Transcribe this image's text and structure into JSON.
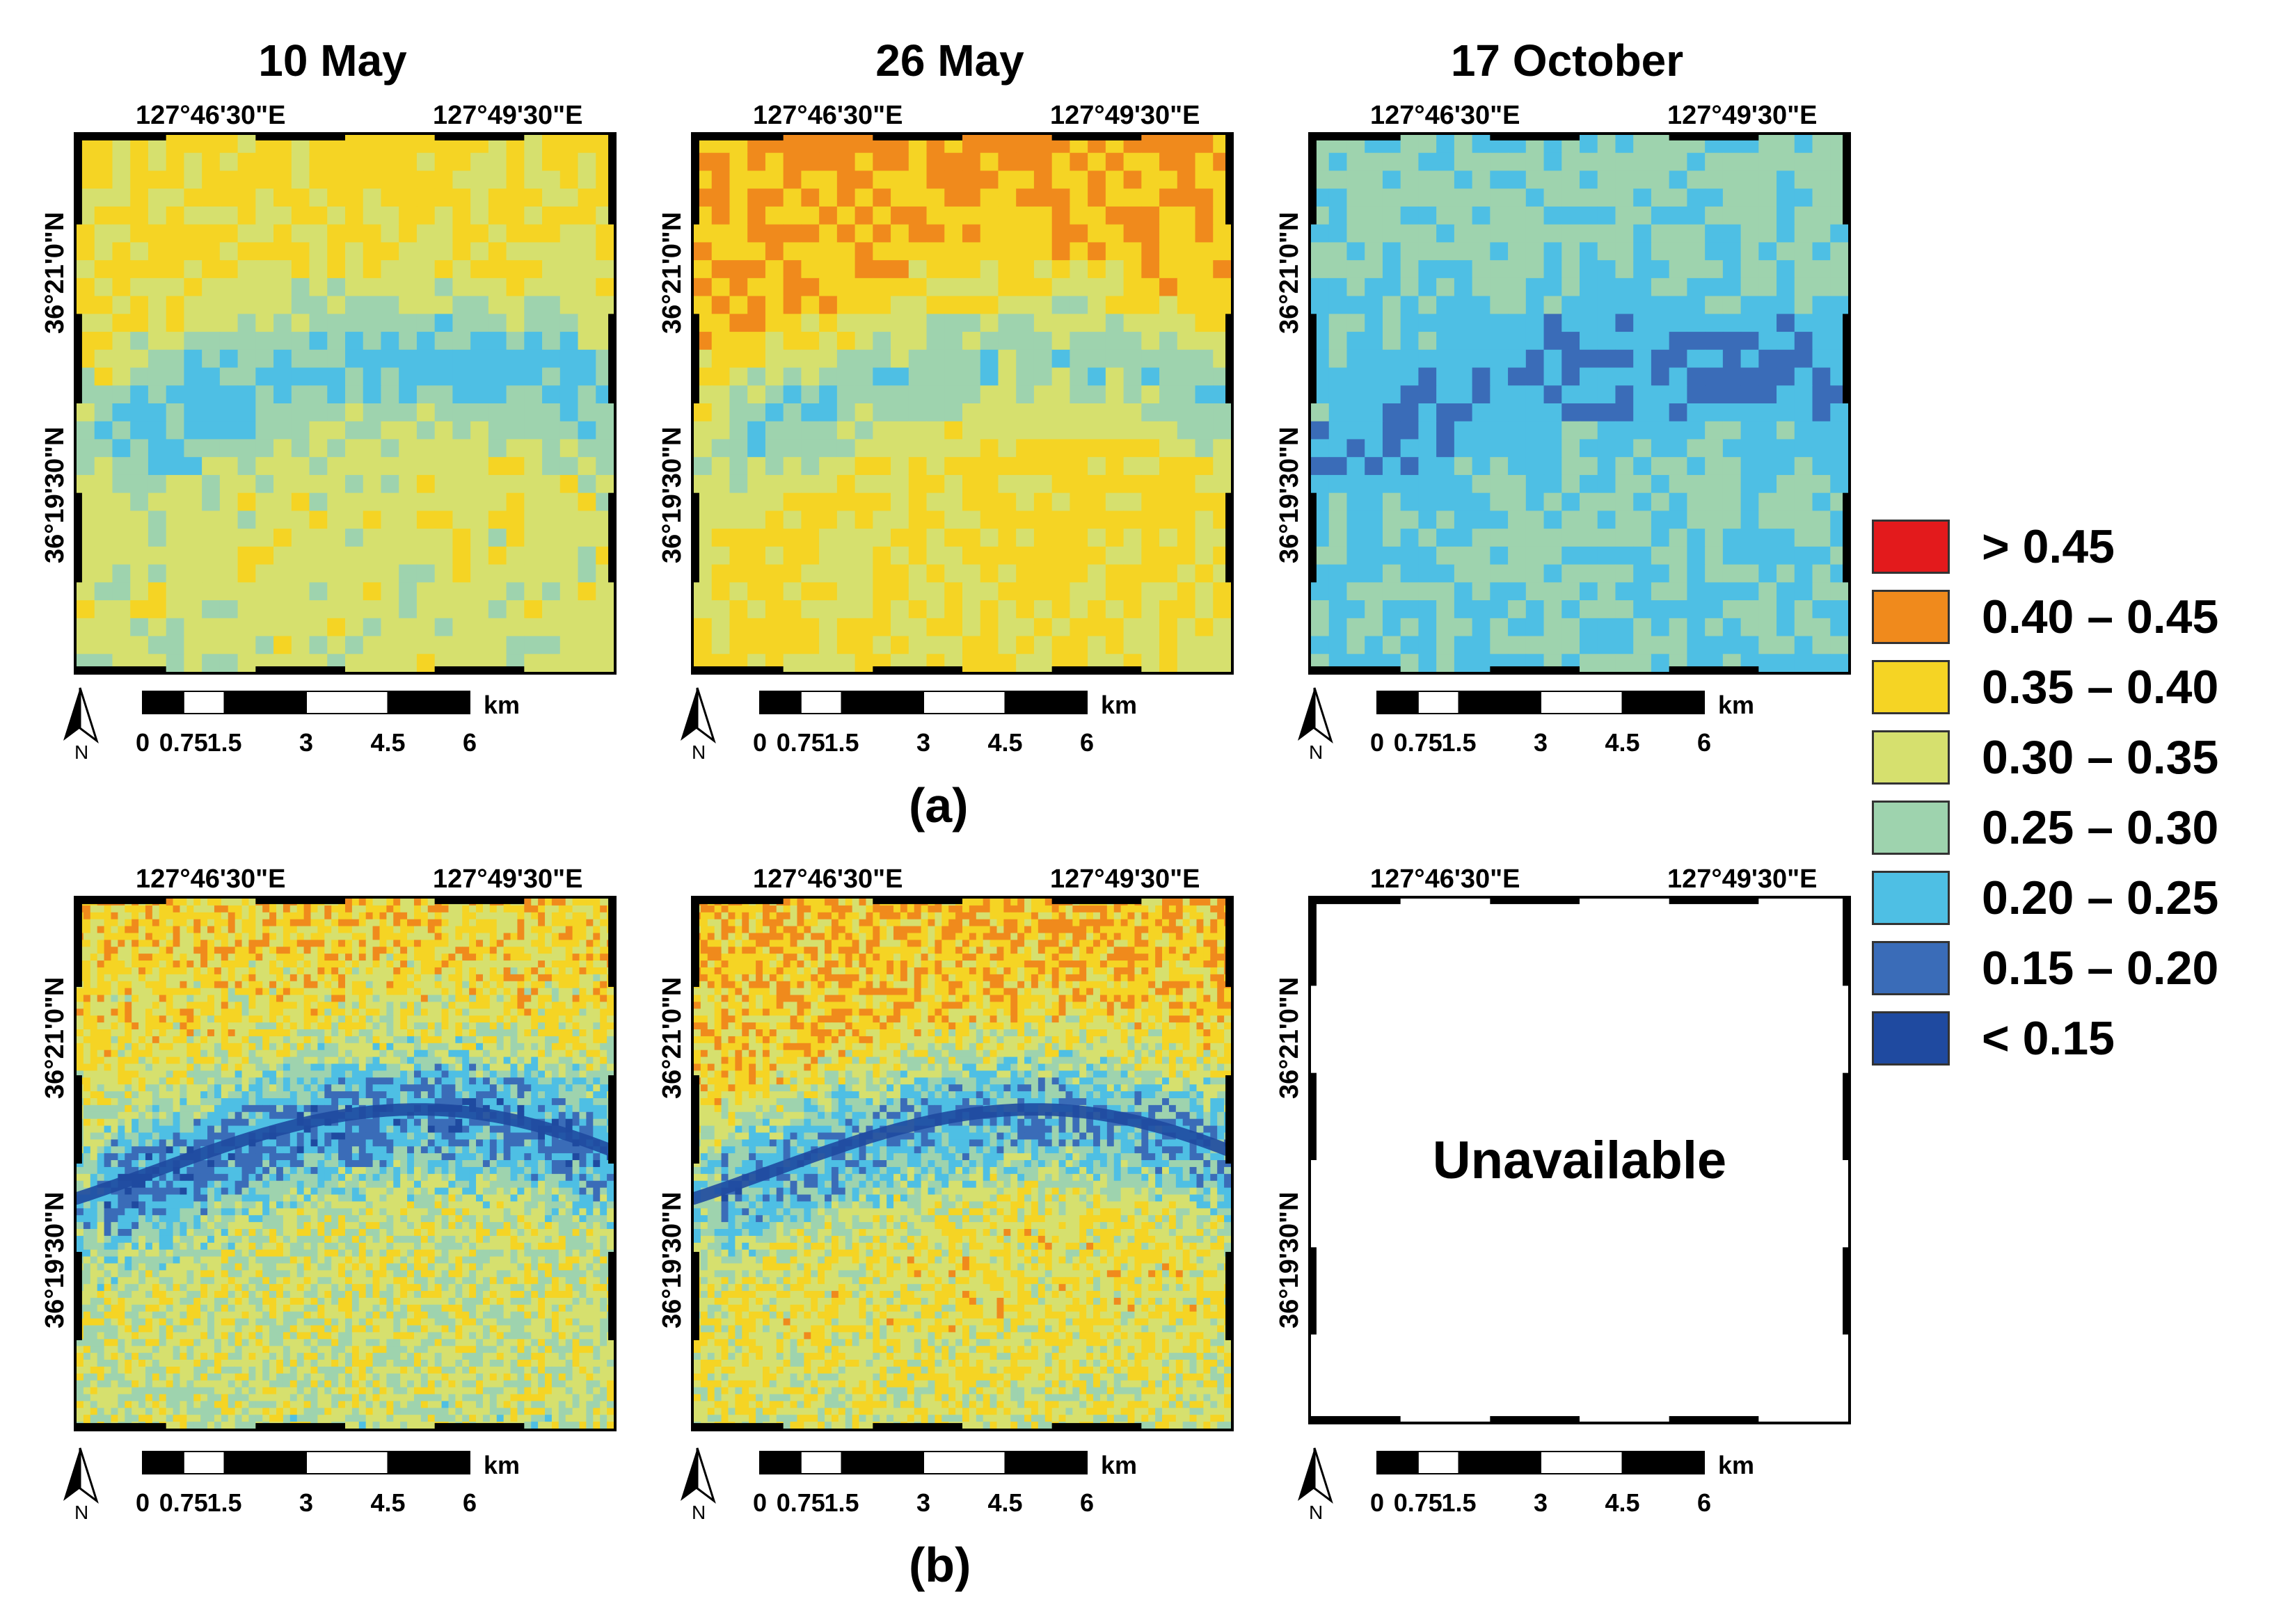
{
  "columns": [
    {
      "title": "10 May"
    },
    {
      "title": "26 May"
    },
    {
      "title": "17 October"
    }
  ],
  "axes": {
    "lon_left": "127°46'30\"E",
    "lon_right": "127°49'30\"E",
    "lat_top": "36°21'0\"N",
    "lat_bottom": "36°19'30\"N"
  },
  "scale": {
    "ticks": [
      "0",
      "0.75",
      "1.5",
      "3",
      "4.5",
      "6"
    ],
    "unit": "km",
    "north_label": "N"
  },
  "panels": {
    "a_label": "(a)",
    "b_label": "(b)",
    "unavailable": "Unavailable"
  },
  "legend": [
    {
      "label": "> 0.45",
      "color": "#e31a1c"
    },
    {
      "label": "0.40 – 0.45",
      "color": "#f08a1c"
    },
    {
      "label": "0.35 – 0.40",
      "color": "#f5d424"
    },
    {
      "label": "0.30 – 0.35",
      "color": "#d6e06e"
    },
    {
      "label": "0.25 – 0.30",
      "color": "#9ed3ae"
    },
    {
      "label": "0.20 – 0.25",
      "color": "#4ebfe4"
    },
    {
      "label": "0.15 – 0.20",
      "color": "#3a6cb8"
    },
    {
      "label": "< 0.15",
      "color": "#1f4aa0"
    }
  ]
}
